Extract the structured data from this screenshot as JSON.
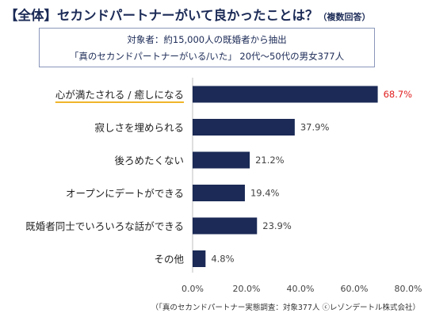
{
  "header": {
    "title": "【全体】セカンドパートナーがいて良かったことは？",
    "title_note": "（複数回答）"
  },
  "info": {
    "line1": "対象者：約15,000人の既婚者から抽出",
    "line2": "「真のセカンドパートナーがいる/いた」 20代～50代の男女377人"
  },
  "chart_data": {
    "type": "bar",
    "orientation": "horizontal",
    "categories": [
      "心が満たされる / 癒しになる",
      "寂しさを埋められる",
      "後ろめたくない",
      "オープンにデートができる",
      "既婚者同士でいろいろな話ができる",
      "その他"
    ],
    "values": [
      68.7,
      37.9,
      21.2,
      19.4,
      23.9,
      4.8
    ],
    "value_labels": [
      "68.7%",
      "37.9%",
      "21.2%",
      "19.4%",
      "23.9%",
      "4.8%"
    ],
    "x_ticks": [
      "0.0%",
      "20.0%",
      "40.0%",
      "60.0%",
      "80.0%"
    ],
    "xlim": [
      0,
      80
    ],
    "grid": false,
    "bar_color": "#1b2a56",
    "highlight_label_color": "#e02020",
    "highlight_index": 0,
    "underline_color": "#f0b52b"
  },
  "footer": {
    "source": "（「真のセカンドパートナー実態調査：対象377人 ⓒレゾンデートル株式会社）"
  }
}
